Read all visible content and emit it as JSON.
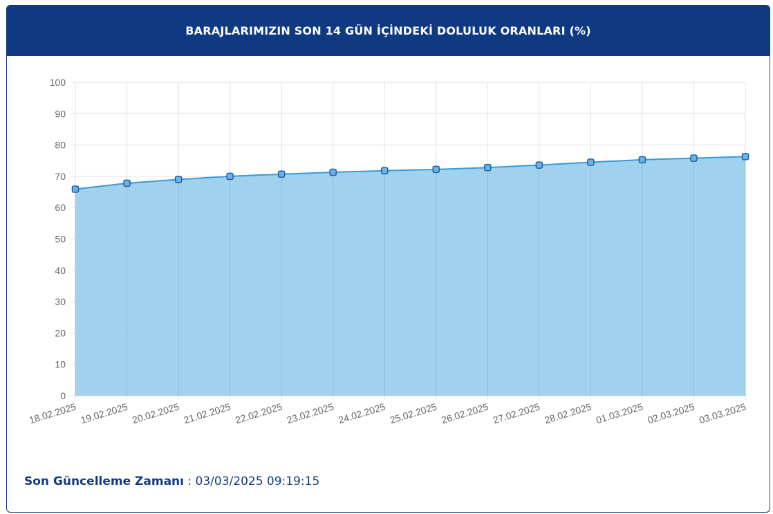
{
  "header": {
    "title": "BARAJLARIMIZIN SON 14 GÜN İÇİNDEKİ DOLULUK ORANLARI (%)"
  },
  "footer": {
    "label": "Son Güncelleme Zamanı",
    "separator": " : ",
    "value": "03/03/2025 09:19:15"
  },
  "colors": {
    "header_bg": "#0f3a82",
    "fill": "#9bcfec",
    "line": "#3a9ad9",
    "marker": "#1f5fa8"
  },
  "chart_data": {
    "type": "area",
    "title": "",
    "xlabel": "",
    "ylabel": "",
    "ylim": [
      0,
      100
    ],
    "yticks": [
      0,
      10,
      20,
      30,
      40,
      50,
      60,
      70,
      80,
      90,
      100
    ],
    "grid": true,
    "categories": [
      "18.02.2025",
      "19.02.2025",
      "20.02.2025",
      "21.02.2025",
      "22.02.2025",
      "23.02.2025",
      "24.02.2025",
      "25.02.2025",
      "26.02.2025",
      "27.02.2025",
      "28.02.2025",
      "01.03.2025",
      "02.03.2025",
      "03.03.2025"
    ],
    "values": [
      65.9,
      67.8,
      69.0,
      70.0,
      70.7,
      71.3,
      71.8,
      72.2,
      72.8,
      73.6,
      74.5,
      75.3,
      75.8,
      76.3
    ]
  }
}
